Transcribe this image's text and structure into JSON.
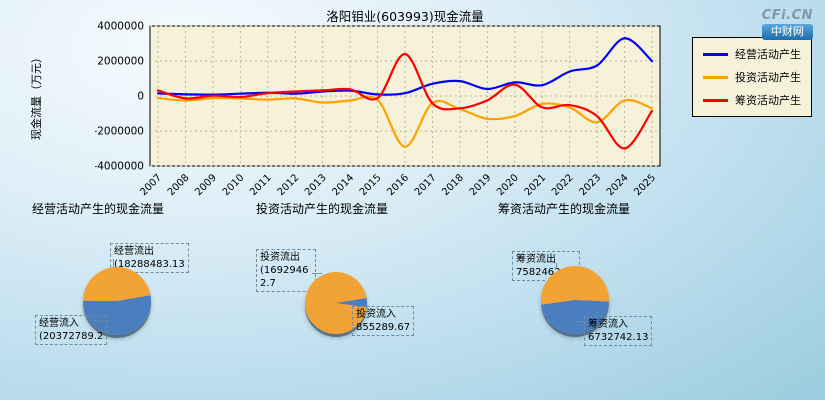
{
  "logo": {
    "brand": "CFi.CN",
    "site": "中财网"
  },
  "chart_data": [
    {
      "type": "line",
      "title": "洛阳钼业(603993)现金流量",
      "ylabel": "现金流量（万元）",
      "ylim": [
        -4000000,
        4000000
      ],
      "yticks": [
        4000000,
        2000000,
        0,
        -2000000,
        -4000000
      ],
      "grid": true,
      "legend_position": "outside-right-top",
      "plot_bg": "#f6f2da",
      "grid_color": "#bdb592",
      "categories": [
        "2007",
        "2008",
        "2009",
        "2010",
        "2011",
        "2012",
        "2013",
        "2014",
        "2015",
        "2016",
        "2017",
        "2018",
        "2019",
        "2020",
        "2021",
        "2022",
        "2023",
        "2024",
        "2025"
      ],
      "series": [
        {
          "name": "经营活动产生",
          "color": "#0000ff",
          "values": [
            150000,
            90000,
            80000,
            130000,
            190000,
            130000,
            260000,
            310000,
            90000,
            160000,
            700000,
            850000,
            400000,
            780000,
            620000,
            1400000,
            1750000,
            3300000,
            2000000
          ]
        },
        {
          "name": "投资活动产生",
          "color": "#ffa200",
          "values": [
            -120000,
            -260000,
            -120000,
            -140000,
            -210000,
            -140000,
            -380000,
            -260000,
            -220000,
            -2900000,
            -400000,
            -750000,
            -1300000,
            -1150000,
            -450000,
            -650000,
            -1500000,
            -250000,
            -700000
          ]
        },
        {
          "name": "筹资活动产生",
          "color": "#ff0000",
          "values": [
            320000,
            -140000,
            20000,
            -60000,
            160000,
            260000,
            320000,
            380000,
            -120000,
            2400000,
            -420000,
            -700000,
            -250000,
            650000,
            -650000,
            -520000,
            -1150000,
            -3000000,
            -850000
          ]
        }
      ]
    },
    {
      "type": "pie",
      "title": "经营活动产生的现金流量",
      "start_angle": 270,
      "slices": [
        {
          "label": "经营流出",
          "value": 18288483.13,
          "display": "(18288483.13",
          "color": "#f2a335"
        },
        {
          "label": "经营流入",
          "value": 20372789.2,
          "display": "(20372789.2",
          "color": "#4a7ebf"
        }
      ]
    },
    {
      "type": "pie",
      "title": "投资活动产生的现金流量",
      "start_angle": 98,
      "slices": [
        {
          "label": "投资流出",
          "value": 16929462.7,
          "display": "(16929462.7",
          "color": "#f2a335"
        },
        {
          "label": "投资流入",
          "value": 855289.67,
          "display": "855289.67",
          "color": "#4a7ebf"
        }
      ]
    },
    {
      "type": "pie",
      "title": "筹资活动产生的现金流量",
      "start_angle": 262,
      "slices": [
        {
          "label": "筹资流出",
          "value": 7582462.81,
          "display": "7582462.81",
          "color": "#f2a335"
        },
        {
          "label": "筹资流入",
          "value": 6732742.13,
          "display": "6732742.13",
          "color": "#4a7ebf"
        }
      ]
    }
  ]
}
